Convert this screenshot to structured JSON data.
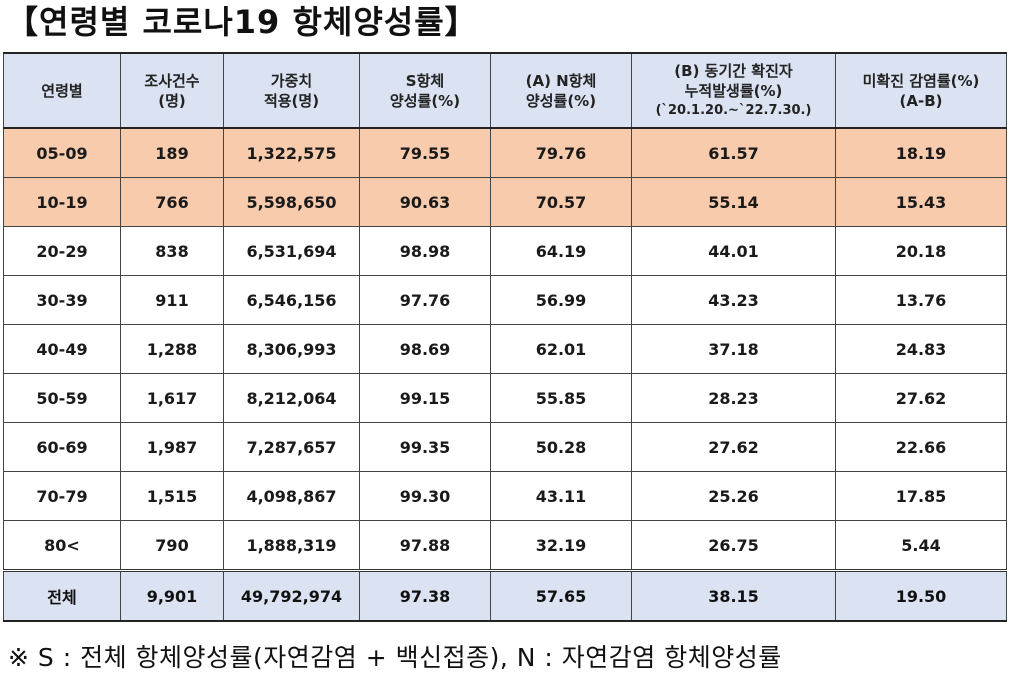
{
  "title": "【연령별 코로나19 항체양성률】",
  "table": {
    "headers": [
      {
        "line1": "연령별",
        "line2": "",
        "line3": ""
      },
      {
        "line1": "조사건수",
        "line2": "(명)",
        "line3": ""
      },
      {
        "line1": "가중치",
        "line2": "적용(명)",
        "line3": ""
      },
      {
        "line1": "S항체",
        "line2": "양성률(%)",
        "line3": ""
      },
      {
        "line1": "(A) N항체",
        "line2": "양성률(%)",
        "line3": ""
      },
      {
        "line1": "(B) 동기간 확진자",
        "line2": "누적발생률(%)",
        "line3": "(`20.1.20.~`22.7.30.)"
      },
      {
        "line1": "미확진 감염률(%)",
        "line2": "(A-B)",
        "line3": ""
      }
    ],
    "rows": [
      {
        "age": "05-09",
        "count": "189",
        "weighted": "1,322,575",
        "s_rate": "79.55",
        "n_rate": "79.76",
        "cum_rate": "61.57",
        "unconfirmed": "18.19",
        "highlight": true
      },
      {
        "age": "10-19",
        "count": "766",
        "weighted": "5,598,650",
        "s_rate": "90.63",
        "n_rate": "70.57",
        "cum_rate": "55.14",
        "unconfirmed": "15.43",
        "highlight": true
      },
      {
        "age": "20-29",
        "count": "838",
        "weighted": "6,531,694",
        "s_rate": "98.98",
        "n_rate": "64.19",
        "cum_rate": "44.01",
        "unconfirmed": "20.18",
        "highlight": false
      },
      {
        "age": "30-39",
        "count": "911",
        "weighted": "6,546,156",
        "s_rate": "97.76",
        "n_rate": "56.99",
        "cum_rate": "43.23",
        "unconfirmed": "13.76",
        "highlight": false
      },
      {
        "age": "40-49",
        "count": "1,288",
        "weighted": "8,306,993",
        "s_rate": "98.69",
        "n_rate": "62.01",
        "cum_rate": "37.18",
        "unconfirmed": "24.83",
        "highlight": false
      },
      {
        "age": "50-59",
        "count": "1,617",
        "weighted": "8,212,064",
        "s_rate": "99.15",
        "n_rate": "55.85",
        "cum_rate": "28.23",
        "unconfirmed": "27.62",
        "highlight": false
      },
      {
        "age": "60-69",
        "count": "1,987",
        "weighted": "7,287,657",
        "s_rate": "99.35",
        "n_rate": "50.28",
        "cum_rate": "27.62",
        "unconfirmed": "22.66",
        "highlight": false
      },
      {
        "age": "70-79",
        "count": "1,515",
        "weighted": "4,098,867",
        "s_rate": "99.30",
        "n_rate": "43.11",
        "cum_rate": "25.26",
        "unconfirmed": "17.85",
        "highlight": false
      },
      {
        "age": "80<",
        "count": "790",
        "weighted": "1,888,319",
        "s_rate": "97.88",
        "n_rate": "32.19",
        "cum_rate": "26.75",
        "unconfirmed": "5.44",
        "highlight": false
      }
    ],
    "total": {
      "age": "전체",
      "count": "9,901",
      "weighted": "49,792,974",
      "s_rate": "97.38",
      "n_rate": "57.65",
      "cum_rate": "38.15",
      "unconfirmed": "19.50"
    }
  },
  "note": "※ S : 전체 항체양성률(자연감염 + 백신접종), N : 자연감염 항체양성률",
  "colors": {
    "header_bg": "#dbe2f2",
    "highlight_bg": "#f8cbad",
    "total_bg": "#dbe2f2",
    "border": "#444444"
  }
}
